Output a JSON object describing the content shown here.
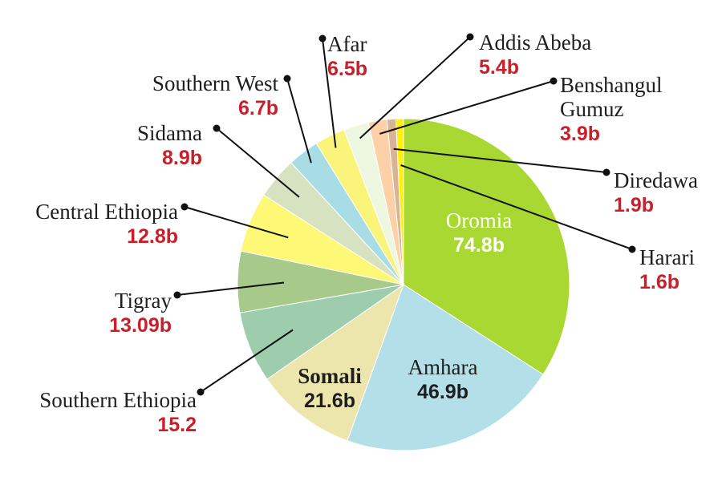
{
  "chart_data": {
    "type": "pie",
    "title": "",
    "slices": [
      {
        "name": "Oromia",
        "label": "74.8b",
        "value": 74.8,
        "color": "#aad832"
      },
      {
        "name": "Amhara",
        "label": "46.9b",
        "value": 46.9,
        "color": "#b3e0e8"
      },
      {
        "name": "Somali",
        "label": "21.6b",
        "value": 21.6,
        "color": "#ede6ac"
      },
      {
        "name": "Southern Ethiopia",
        "label": "15.2",
        "value": 15.2,
        "color": "#9dcdad"
      },
      {
        "name": "Tigray",
        "label": "13.09b",
        "value": 13.09,
        "color": "#a7c98a"
      },
      {
        "name": "Central Ethiopia",
        "label": "12.8b",
        "value": 12.8,
        "color": "#fdf876"
      },
      {
        "name": "Sidama",
        "label": "8.9b",
        "value": 8.9,
        "color": "#d6e2c0"
      },
      {
        "name": "Southern West",
        "label": "6.7b",
        "value": 6.7,
        "color": "#a9dde6"
      },
      {
        "name": "Afar",
        "label": "6.5b",
        "value": 6.5,
        "color": "#faf57a"
      },
      {
        "name": "Addis Abeba",
        "label": "5.4b",
        "value": 5.4,
        "color": "#eef8e0"
      },
      {
        "name": "Benshangul Gumuz",
        "label": "3.9b",
        "value": 3.9,
        "color": "#fdd0a8"
      },
      {
        "name": "Diredawa",
        "label": "1.9b",
        "value": 1.9,
        "color": "#d8b494"
      },
      {
        "name": "Harari",
        "label": "1.6b",
        "value": 1.6,
        "color": "#fff200"
      }
    ]
  }
}
